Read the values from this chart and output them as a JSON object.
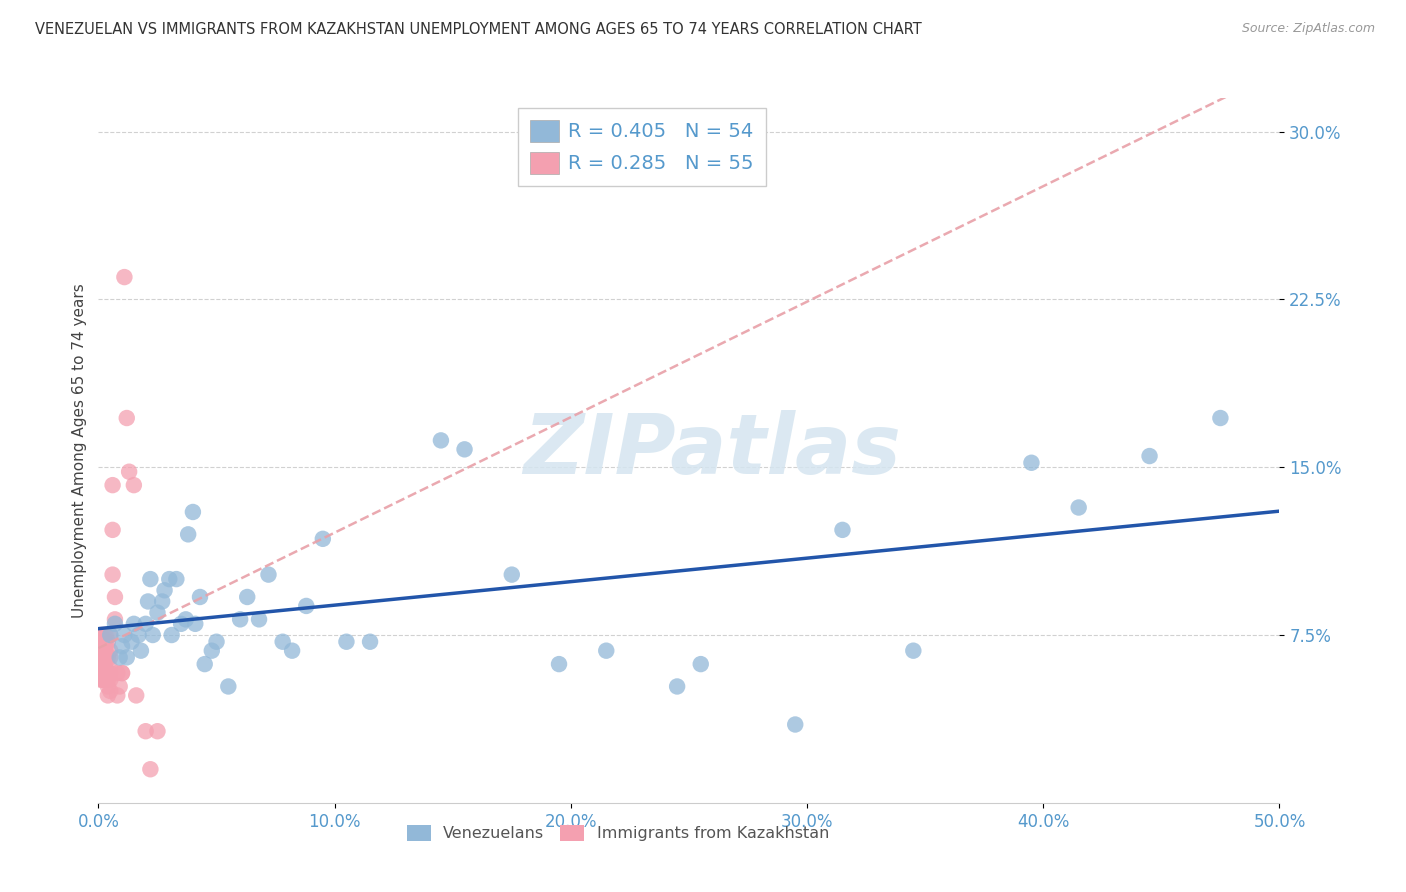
{
  "title": "VENEZUELAN VS IMMIGRANTS FROM KAZAKHSTAN UNEMPLOYMENT AMONG AGES 65 TO 74 YEARS CORRELATION CHART",
  "source": "Source: ZipAtlas.com",
  "ylabel": "Unemployment Among Ages 65 to 74 years",
  "xlim": [
    0.0,
    0.5
  ],
  "ylim": [
    0.0,
    0.315
  ],
  "xticks": [
    0.0,
    0.1,
    0.2,
    0.3,
    0.4,
    0.5
  ],
  "xticklabels": [
    "0.0%",
    "10.0%",
    "20.0%",
    "30.0%",
    "40.0%",
    "50.0%"
  ],
  "yticks": [
    0.075,
    0.15,
    0.225,
    0.3
  ],
  "yticklabels": [
    "7.5%",
    "15.0%",
    "22.5%",
    "30.0%"
  ],
  "blue_color": "#92B8D8",
  "pink_color": "#F4A0B0",
  "blue_line_color": "#2255AA",
  "pink_line_color": "#E06070",
  "pink_line_dashed_color": "#E8A0A8",
  "grid_color": "#CCCCCC",
  "background_color": "#FFFFFF",
  "watermark_text": "ZIPatlas",
  "watermark_color": "#D5E5F0",
  "tick_color": "#5599CC",
  "legend_r_blue": "R = 0.405",
  "legend_n_blue": "N = 54",
  "legend_r_pink": "R = 0.285",
  "legend_n_pink": "N = 55",
  "legend_label_blue": "Venezuelans",
  "legend_label_pink": "Immigrants from Kazakhstan",
  "venezuelans_x": [
    0.005,
    0.007,
    0.009,
    0.01,
    0.011,
    0.012,
    0.014,
    0.015,
    0.017,
    0.018,
    0.02,
    0.021,
    0.022,
    0.023,
    0.025,
    0.027,
    0.028,
    0.03,
    0.031,
    0.033,
    0.035,
    0.037,
    0.038,
    0.04,
    0.041,
    0.043,
    0.045,
    0.048,
    0.05,
    0.055,
    0.06,
    0.063,
    0.068,
    0.072,
    0.078,
    0.082,
    0.088,
    0.095,
    0.105,
    0.115,
    0.145,
    0.155,
    0.175,
    0.195,
    0.215,
    0.245,
    0.255,
    0.295,
    0.315,
    0.345,
    0.395,
    0.415,
    0.445,
    0.475
  ],
  "venezuelans_y": [
    0.075,
    0.08,
    0.065,
    0.07,
    0.075,
    0.065,
    0.072,
    0.08,
    0.075,
    0.068,
    0.08,
    0.09,
    0.1,
    0.075,
    0.085,
    0.09,
    0.095,
    0.1,
    0.075,
    0.1,
    0.08,
    0.082,
    0.12,
    0.13,
    0.08,
    0.092,
    0.062,
    0.068,
    0.072,
    0.052,
    0.082,
    0.092,
    0.082,
    0.102,
    0.072,
    0.068,
    0.088,
    0.118,
    0.072,
    0.072,
    0.162,
    0.158,
    0.102,
    0.062,
    0.068,
    0.052,
    0.062,
    0.035,
    0.122,
    0.068,
    0.152,
    0.132,
    0.155,
    0.172
  ],
  "kazakhstan_x": [
    0.001,
    0.001,
    0.001,
    0.001,
    0.001,
    0.002,
    0.002,
    0.002,
    0.002,
    0.002,
    0.002,
    0.002,
    0.002,
    0.002,
    0.003,
    0.003,
    0.003,
    0.003,
    0.003,
    0.003,
    0.003,
    0.003,
    0.003,
    0.003,
    0.004,
    0.004,
    0.004,
    0.004,
    0.004,
    0.004,
    0.005,
    0.005,
    0.005,
    0.005,
    0.005,
    0.005,
    0.005,
    0.006,
    0.006,
    0.006,
    0.007,
    0.007,
    0.008,
    0.008,
    0.009,
    0.01,
    0.01,
    0.011,
    0.012,
    0.013,
    0.015,
    0.016,
    0.02,
    0.022,
    0.025
  ],
  "kazakhstan_y": [
    0.075,
    0.065,
    0.06,
    0.055,
    0.07,
    0.075,
    0.068,
    0.06,
    0.055,
    0.07,
    0.065,
    0.06,
    0.072,
    0.055,
    0.075,
    0.068,
    0.065,
    0.06,
    0.072,
    0.055,
    0.07,
    0.065,
    0.06,
    0.055,
    0.048,
    0.052,
    0.058,
    0.065,
    0.072,
    0.055,
    0.075,
    0.068,
    0.065,
    0.06,
    0.055,
    0.058,
    0.05,
    0.102,
    0.122,
    0.142,
    0.082,
    0.092,
    0.058,
    0.048,
    0.052,
    0.058,
    0.058,
    0.235,
    0.172,
    0.148,
    0.142,
    0.048,
    0.032,
    0.015,
    0.032
  ]
}
